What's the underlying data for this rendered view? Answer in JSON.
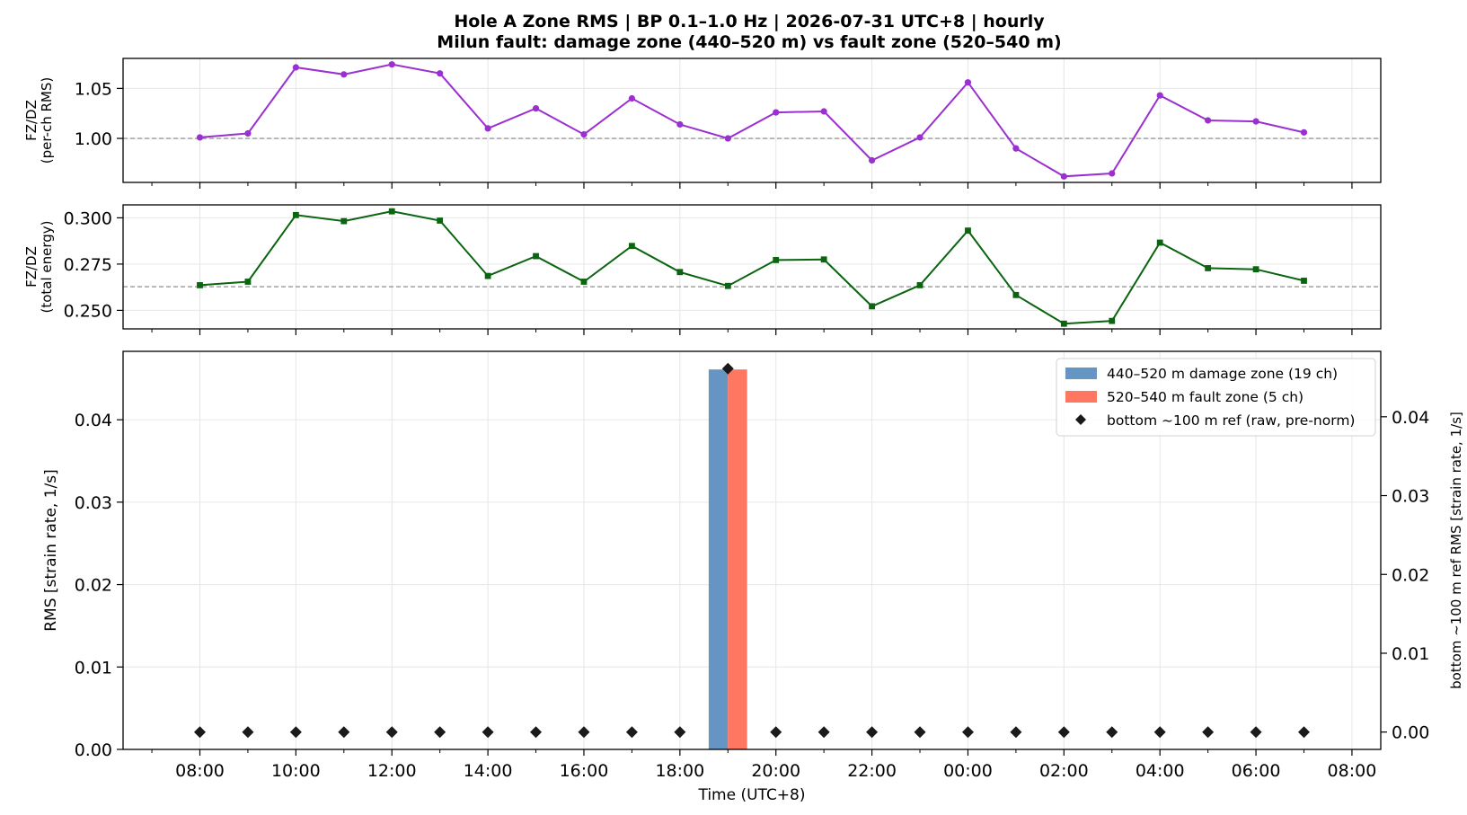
{
  "figure": {
    "title_line1": "Hole A Zone RMS  |  BP 0.1–1.0 Hz  |  2026-07-31 UTC+8  |  hourly",
    "title_line2": "Milun fault: damage zone (440–520 m) vs fault zone (520–540 m)"
  },
  "chart_data": [
    {
      "type": "line",
      "ylabel": [
        "FZ/DZ",
        "(per-ch RMS)"
      ],
      "color": "#9b30d0",
      "marker": "circle",
      "x_hours": [
        0,
        1,
        2,
        3,
        4,
        5,
        6,
        7,
        8,
        9,
        10,
        11,
        12,
        13,
        14,
        15,
        16,
        17,
        18,
        19,
        20,
        21,
        22,
        23
      ],
      "values": [
        1.001,
        1.005,
        1.071,
        1.064,
        1.074,
        1.065,
        1.01,
        1.03,
        1.004,
        1.04,
        1.014,
        1.0,
        1.026,
        1.027,
        0.978,
        1.001,
        1.056,
        0.99,
        0.962,
        0.965,
        1.043,
        1.018,
        1.017,
        1.006
      ],
      "reference_line": 1.0,
      "ylim": [
        0.956,
        1.08
      ],
      "yticks": [
        1.0,
        1.05
      ],
      "ytick_labels": [
        "1.00",
        "1.05"
      ],
      "grid": true
    },
    {
      "type": "line",
      "ylabel": [
        "FZ/DZ",
        "(total energy)"
      ],
      "color": "#0a6410",
      "marker": "square",
      "x_hours": [
        0,
        1,
        2,
        3,
        4,
        5,
        6,
        7,
        8,
        9,
        10,
        11,
        12,
        13,
        14,
        15,
        16,
        17,
        18,
        19,
        20,
        21,
        22,
        23
      ],
      "values": [
        0.2636,
        0.2655,
        0.3015,
        0.2982,
        0.3035,
        0.2985,
        0.2686,
        0.2793,
        0.2655,
        0.2848,
        0.2707,
        0.2632,
        0.2772,
        0.2775,
        0.2522,
        0.2636,
        0.2931,
        0.2583,
        0.2428,
        0.2443,
        0.2866,
        0.2728,
        0.2722,
        0.266
      ],
      "reference_line": 0.2628,
      "ylim": [
        0.24,
        0.307
      ],
      "yticks": [
        0.25,
        0.275,
        0.3
      ],
      "ytick_labels": [
        "0.250",
        "0.275",
        "0.300"
      ],
      "grid": true
    },
    {
      "type": "bar",
      "xlabel": "Time (UTC+8)",
      "ylabel": "RMS  [strain rate, 1/s]",
      "ylabel_right": "bottom ~100 m ref RMS  [strain rate, 1/s]",
      "ylim": [
        0,
        0.0483
      ],
      "yticks": [
        0,
        0.01,
        0.02,
        0.03,
        0.04
      ],
      "ytick_labels": [
        "0.00",
        "0.01",
        "0.02",
        "0.03",
        "0.04"
      ],
      "ylim_right": [
        -0.0022,
        0.0483
      ],
      "yticks_right": [
        0,
        0.01,
        0.02,
        0.03,
        0.04
      ],
      "ytick_labels_right": [
        "0.00",
        "0.01",
        "0.02",
        "0.03",
        "0.04"
      ],
      "xlim_hours": [
        -1.6,
        24.6
      ],
      "xticks_hours": [
        0,
        2,
        4,
        6,
        8,
        10,
        12,
        14,
        16,
        18,
        20,
        22,
        24
      ],
      "xtick_labels": [
        "08:00",
        "10:00",
        "12:00",
        "14:00",
        "16:00",
        "18:00",
        "20:00",
        "22:00",
        "00:00",
        "02:00",
        "04:00",
        "06:00",
        "08:00"
      ],
      "series": [
        {
          "name": "440–520 m  damage zone (19 ch)",
          "color": "#6495c3",
          "x_hours": [
            11
          ],
          "values": [
            0.0461
          ],
          "offset": "left"
        },
        {
          "name": "520–540 m  fault zone (5 ch)",
          "color": "#ff7761",
          "x_hours": [
            11
          ],
          "values": [
            0.0461
          ],
          "offset": "right"
        }
      ],
      "ref_series": {
        "name": "bottom ~100 m ref (raw, pre-norm)",
        "color": "#1a1a1a",
        "marker": "diamond",
        "x_hours": [
          0,
          1,
          2,
          3,
          4,
          5,
          6,
          7,
          8,
          9,
          10,
          11,
          12,
          13,
          14,
          15,
          16,
          17,
          18,
          19,
          20,
          21,
          22,
          23
        ],
        "values": [
          0,
          0,
          0,
          0,
          0,
          0,
          0,
          0,
          0,
          0,
          0,
          0.0461,
          0,
          0,
          0,
          0,
          0,
          0,
          0,
          0,
          0,
          0,
          0,
          0
        ]
      },
      "legend_position": "top-right",
      "grid": true
    }
  ]
}
